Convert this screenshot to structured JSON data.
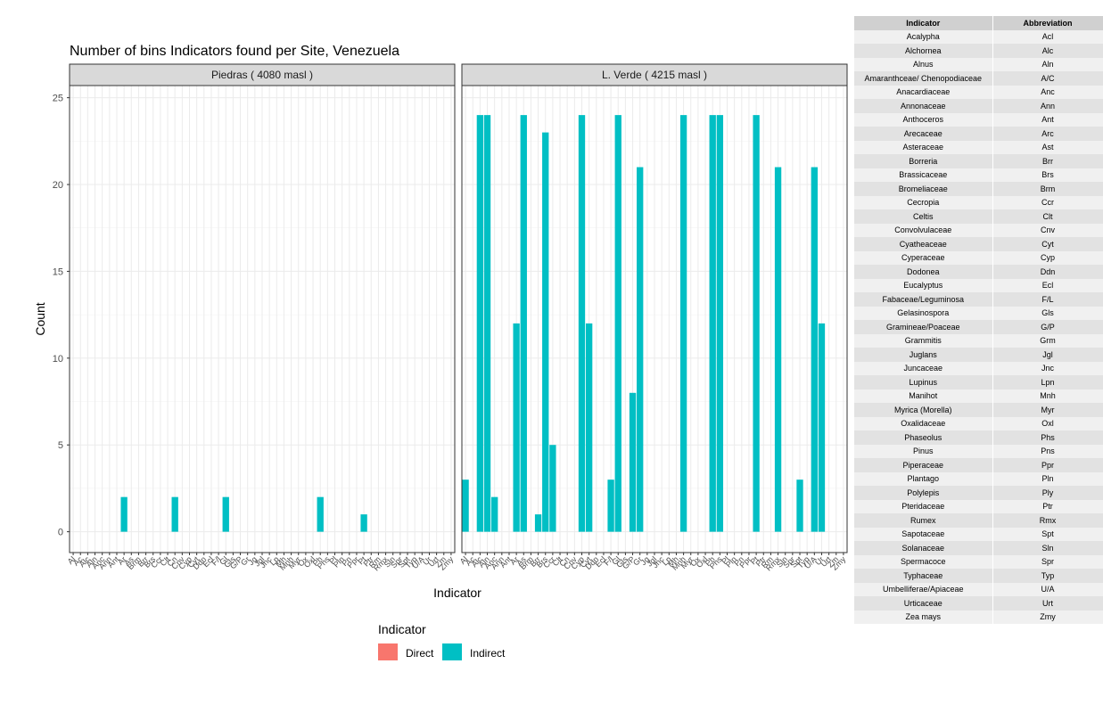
{
  "chart_data": {
    "type": "bar",
    "title": "Number of bins Indicators found per Site, Venezuela",
    "xlabel": "Indicator",
    "ylabel": "Count",
    "ylim": [
      -1.2,
      25.7
    ],
    "yticks": [
      0,
      5,
      10,
      15,
      20,
      25
    ],
    "grid": true,
    "legend": {
      "title": "Indicator",
      "position": "bottom",
      "entries": [
        {
          "name": "Direct",
          "color": "#F8766D"
        },
        {
          "name": "Indirect",
          "color": "#00BFC4"
        }
      ]
    },
    "categories": [
      "Al",
      "Ac",
      "Alc",
      "Aln",
      "Anc",
      "Ann",
      "Ant",
      "Ar",
      "As",
      "Brm",
      "Brr",
      "Brs",
      "Ccr",
      "Clt",
      "Cn",
      "Cnv",
      "Cyp",
      "Cyt",
      "Ddn",
      "Ecl",
      "F/l",
      "Gl",
      "Gls",
      "G/P",
      "Gr",
      "Jg",
      "Jgl",
      "Jnc",
      "Lp",
      "Mh",
      "Mnh",
      "Myr",
      "Ox",
      "Oxl",
      "Ph",
      "Phs",
      "Pl",
      "Pln",
      "Pn",
      "Ppr",
      "Pt",
      "Ptr",
      "Rm",
      "Rmx",
      "Sln",
      "Spr",
      "Spt",
      "Typ",
      "U/A",
      "Ur",
      "Urt",
      "Zm",
      "Zmy"
    ],
    "series_color": "#00BFC4",
    "panels": [
      {
        "label": "Piedras ( 4080 masl )",
        "xtick_labels": [
          "Al",
          "Ac",
          "Alc",
          "Aln",
          "Anc",
          "Ann",
          "Ant",
          "Ar",
          "As",
          "Brm",
          "Brr",
          "Brs",
          "Ccr",
          "Clt",
          "Cn",
          "Cnv",
          "Cyp",
          "Cyt",
          "Ddn",
          "Ecl",
          "F/l",
          "Gl",
          "Gls",
          "G/P",
          "Gr",
          "Jg",
          "Jgl",
          "Jnc",
          "Lp",
          "Mh",
          "Mnh",
          "Myr",
          "Ox",
          "Oxl",
          "Ph",
          "Phs",
          "Pl",
          "Pln",
          "Pn",
          "Ppr",
          "Pt",
          "Ptr",
          "Rm",
          "Rmx",
          "Sln",
          "Spr",
          "Spt",
          "Typ",
          "U/A",
          "Ur",
          "Urt",
          "Zm",
          "Zmy"
        ],
        "bars": [
          {
            "x": "Ar",
            "y": 2
          },
          {
            "x": "Cn",
            "y": 2
          },
          {
            "x": "Gl",
            "y": 2
          },
          {
            "x": "Ph",
            "y": 2
          },
          {
            "x": "Pt",
            "y": 1
          }
        ]
      },
      {
        "label": "L. Verde ( 4215 masl )",
        "xtick_labels": [
          "Al",
          "Ac",
          "Alc",
          "Aln",
          "Anc",
          "Ann",
          "Ant",
          "Ar",
          "As",
          "Brm",
          "Brr",
          "Brs",
          "Ccr",
          "Clt",
          "Cn",
          "Cnv",
          "Cyp",
          "Cyt",
          "Ddn",
          "Ecl",
          "F/l",
          "Gl",
          "Gls",
          "G/P",
          "Gr",
          "Jg",
          "Jgl",
          "Jnc",
          "Lp",
          "Mh",
          "Mnh",
          "Myr",
          "Ox",
          "Oxl",
          "Ph",
          "Phs",
          "Pl",
          "Pln",
          "Pn",
          "Ppr",
          "Pt",
          "Ptr",
          "Rm",
          "Rmx",
          "Sln",
          "Spr",
          "Spt",
          "Typ",
          "U/A",
          "Ur",
          "Urt",
          "Zm",
          "Zmy"
        ],
        "bars": [
          {
            "x": "Al",
            "y": 3
          },
          {
            "x": "Alc",
            "y": 24
          },
          {
            "x": "Aln",
            "y": 24
          },
          {
            "x": "Anc",
            "y": 2
          },
          {
            "x": "Ar",
            "y": 12
          },
          {
            "x": "As",
            "y": 24
          },
          {
            "x": "Brr",
            "y": 1
          },
          {
            "x": "Brs",
            "y": 23
          },
          {
            "x": "Ccr",
            "y": 5
          },
          {
            "x": "Cyp",
            "y": 24
          },
          {
            "x": "Cyt",
            "y": 12
          },
          {
            "x": "F/l",
            "y": 3
          },
          {
            "x": "Gl",
            "y": 24
          },
          {
            "x": "G/P",
            "y": 8
          },
          {
            "x": "Gr",
            "y": 21
          },
          {
            "x": "Mnh",
            "y": 24
          },
          {
            "x": "Ph",
            "y": 24
          },
          {
            "x": "Phs",
            "y": 24
          },
          {
            "x": "Pt",
            "y": 24
          },
          {
            "x": "Rmx",
            "y": 21
          },
          {
            "x": "Spt",
            "y": 3
          },
          {
            "x": "U/A",
            "y": 21
          },
          {
            "x": "Ur",
            "y": 12
          }
        ]
      }
    ]
  },
  "reference_table": {
    "headers": [
      "Indicator",
      "Abbreviation"
    ],
    "rows": [
      [
        "Acalypha",
        "Acl"
      ],
      [
        "Alchornea",
        "Alc"
      ],
      [
        "Alnus",
        "Aln"
      ],
      [
        "Amaranthceae/ Chenopodiaceae",
        "A/C"
      ],
      [
        "Anacardiaceae",
        "Anc"
      ],
      [
        "Annonaceae",
        "Ann"
      ],
      [
        "Anthoceros",
        "Ant"
      ],
      [
        "Arecaceae",
        "Arc"
      ],
      [
        "Asteraceae",
        "Ast"
      ],
      [
        "Borreria",
        "Brr"
      ],
      [
        "Brassicaceae",
        "Brs"
      ],
      [
        "Bromeliaceae",
        "Brm"
      ],
      [
        "Cecropia",
        "Ccr"
      ],
      [
        "Celtis",
        "Clt"
      ],
      [
        "Convolvulaceae",
        "Cnv"
      ],
      [
        "Cyatheaceae",
        "Cyt"
      ],
      [
        "Cyperaceae",
        "Cyp"
      ],
      [
        "Dodonea",
        "Ddn"
      ],
      [
        "Eucalyptus",
        "Ecl"
      ],
      [
        "Fabaceae/Leguminosa",
        "F/L"
      ],
      [
        "Gelasinospora",
        "Gls"
      ],
      [
        "Gramineae/Poaceae",
        "G/P"
      ],
      [
        "Grammitis",
        "Grm"
      ],
      [
        "Juglans",
        "Jgl"
      ],
      [
        "Juncaceae",
        "Jnc"
      ],
      [
        "Lupinus",
        "Lpn"
      ],
      [
        "Manihot",
        "Mnh"
      ],
      [
        "Myrica (Morella)",
        "Myr"
      ],
      [
        "Oxalidaceae",
        "Oxl"
      ],
      [
        "Phaseolus",
        "Phs"
      ],
      [
        "Pinus",
        "Pns"
      ],
      [
        "Piperaceae",
        "Ppr"
      ],
      [
        "Plantago",
        "Pln"
      ],
      [
        "Polylepis",
        "Ply"
      ],
      [
        "Pteridaceae",
        "Ptr"
      ],
      [
        "Rumex",
        "Rmx"
      ],
      [
        "Sapotaceae",
        "Spt"
      ],
      [
        "Solanaceae",
        "Sln"
      ],
      [
        "Spermacoce",
        "Spr"
      ],
      [
        "Typhaceae",
        "Typ"
      ],
      [
        "Umbelliferae/Apiaceae",
        "U/A"
      ],
      [
        "Urticaceae",
        "Urt"
      ],
      [
        "Zea mays",
        "Zmy"
      ]
    ]
  }
}
